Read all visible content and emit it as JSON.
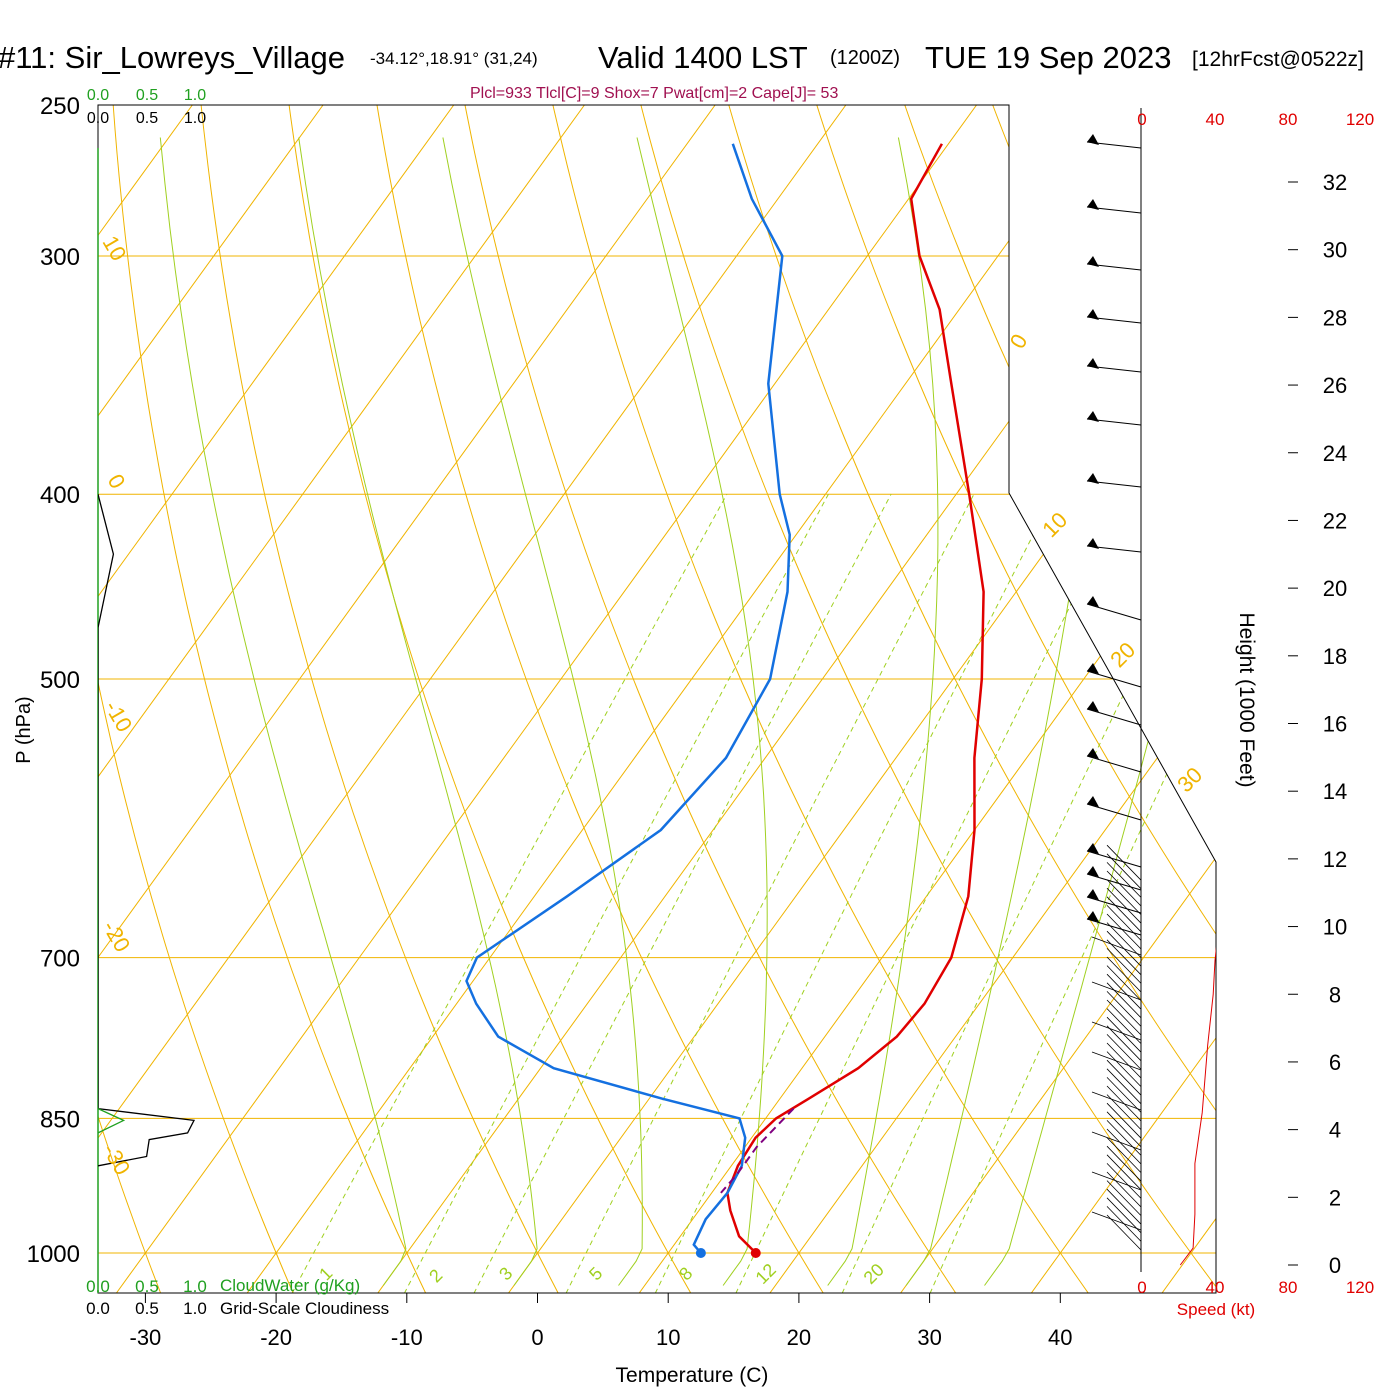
{
  "header": {
    "title_left": "#11: Sir_Lowreys_Village",
    "coords": "-34.12°,18.91° (31,24)",
    "valid": "Valid 1400 LST",
    "zulu": "(1200Z)",
    "date": "TUE 19 Sep 2023",
    "forecast": "[12hrFcst@0522z]",
    "params": "Plcl=933 Tlcl[C]=9 Shox=7 Pwat[cm]=2 Cape[J]= 53"
  },
  "colors": {
    "isotherm": "#f0b400",
    "dry_adiabat": "#a0d020",
    "mixing_ratio": "#a0d020",
    "temperature": "#e00000",
    "dewpoint": "#1470e0",
    "parcel": "#800080",
    "param_text": "#a01050",
    "cloudwater": "#20a020",
    "speed": "#e00000"
  },
  "axes": {
    "xlabel": "Temperature (C)",
    "ylabel": "P (hPa)",
    "height_label": "Height (1000 Feet)",
    "x_ticks": [
      "-30",
      "-20",
      "-10",
      "0",
      "10",
      "20",
      "30",
      "40"
    ],
    "p_ticks": [
      "250",
      "300",
      "400",
      "500",
      "700",
      "850",
      "1000"
    ],
    "height_ticks": [
      "0",
      "2",
      "4",
      "6",
      "8",
      "10",
      "12",
      "14",
      "16",
      "18",
      "20",
      "22",
      "24",
      "26",
      "28",
      "30",
      "32"
    ],
    "speed_ticks_top": [
      "0",
      "40",
      "80",
      "120"
    ],
    "speed_ticks_bottom": [
      "0",
      "40",
      "80",
      "120"
    ],
    "speed_label": "Speed (kt)",
    "cloud_ticks_green": [
      "0.0",
      "0.5",
      "1.0"
    ],
    "cloud_ticks_black": [
      "0.0",
      "0.5",
      "1.0"
    ],
    "cloudwater_label": "CloudWater (g/Kg)",
    "cloudiness_label": "Grid-Scale Cloudiness",
    "isotherm_labels": [
      "10",
      "0",
      "-10",
      "-20",
      "-30",
      "0",
      "10",
      "20",
      "30"
    ],
    "mixing_ratio_labels": [
      "1",
      "2",
      "3",
      "5",
      "8",
      "12",
      "20"
    ]
  },
  "chart_data": {
    "type": "line",
    "subtype": "skew-T log-P sounding",
    "x_range_C": [
      -30,
      40
    ],
    "p_range_hPa": [
      250,
      1000
    ],
    "temperature": [
      {
        "p": 1000,
        "t": 16.7
      },
      {
        "p": 980,
        "t": 14.5
      },
      {
        "p": 950,
        "t": 12.4
      },
      {
        "p": 930,
        "t": 11.2
      },
      {
        "p": 900,
        "t": 10.5
      },
      {
        "p": 870,
        "t": 10.3
      },
      {
        "p": 850,
        "t": 10.8
      },
      {
        "p": 830,
        "t": 12.2
      },
      {
        "p": 800,
        "t": 14.3
      },
      {
        "p": 770,
        "t": 15.5
      },
      {
        "p": 740,
        "t": 15.8
      },
      {
        "p": 700,
        "t": 15.3
      },
      {
        "p": 650,
        "t": 13.2
      },
      {
        "p": 600,
        "t": 10.0
      },
      {
        "p": 550,
        "t": 6.0
      },
      {
        "p": 500,
        "t": 2.2
      },
      {
        "p": 450,
        "t": -2.5
      },
      {
        "p": 400,
        "t": -9.0
      },
      {
        "p": 350,
        "t": -16.5
      },
      {
        "p": 320,
        "t": -21.5
      },
      {
        "p": 300,
        "t": -26.0
      },
      {
        "p": 280,
        "t": -29.8
      },
      {
        "p": 262,
        "t": -30.5
      }
    ],
    "dewpoint": [
      {
        "p": 1000,
        "t": 12.5
      },
      {
        "p": 990,
        "t": 11.5
      },
      {
        "p": 960,
        "t": 11.0
      },
      {
        "p": 930,
        "t": 11.2
      },
      {
        "p": 900,
        "t": 10.8
      },
      {
        "p": 870,
        "t": 9.5
      },
      {
        "p": 850,
        "t": 8.0
      },
      {
        "p": 830,
        "t": 1.0
      },
      {
        "p": 800,
        "t": -9.0
      },
      {
        "p": 770,
        "t": -15.0
      },
      {
        "p": 740,
        "t": -18.5
      },
      {
        "p": 720,
        "t": -20.5
      },
      {
        "p": 700,
        "t": -21.0
      },
      {
        "p": 650,
        "t": -17.5
      },
      {
        "p": 600,
        "t": -14.0
      },
      {
        "p": 550,
        "t": -13.0
      },
      {
        "p": 500,
        "t": -14.0
      },
      {
        "p": 450,
        "t": -17.5
      },
      {
        "p": 420,
        "t": -20.5
      },
      {
        "p": 400,
        "t": -23.5
      },
      {
        "p": 350,
        "t": -30.5
      },
      {
        "p": 300,
        "t": -36.5
      },
      {
        "p": 280,
        "t": -42.0
      },
      {
        "p": 262,
        "t": -46.5
      }
    ],
    "parcel": [
      {
        "p": 840,
        "t": 11.6
      },
      {
        "p": 880,
        "t": 10.9
      },
      {
        "p": 910,
        "t": 10.9
      },
      {
        "p": 930,
        "t": 10.7
      }
    ],
    "surface_temperature_C": 16.7,
    "surface_dewpoint_C": 12.5,
    "wind_speed_profile_kt": [
      {
        "h_kft": 0,
        "s": 21
      },
      {
        "h_kft": 0.5,
        "s": 28
      },
      {
        "h_kft": 1.5,
        "s": 29
      },
      {
        "h_kft": 3,
        "s": 29
      },
      {
        "h_kft": 4.5,
        "s": 33
      },
      {
        "h_kft": 6.5,
        "s": 36
      },
      {
        "h_kft": 8,
        "s": 39
      },
      {
        "h_kft": 9,
        "s": 40
      },
      {
        "h_kft": 10,
        "s": 42
      },
      {
        "h_kft": 12,
        "s": 48
      },
      {
        "h_kft": 14,
        "s": 54
      },
      {
        "h_kft": 16,
        "s": 60
      },
      {
        "h_kft": 20,
        "s": 66
      },
      {
        "h_kft": 24,
        "s": 72
      },
      {
        "h_kft": 28,
        "s": 78
      },
      {
        "h_kft": 30,
        "s": 80
      },
      {
        "h_kft": 31,
        "s": 80
      },
      {
        "h_kft": 32,
        "s": 79
      },
      {
        "h_kft": 33.5,
        "s": 77
      }
    ],
    "grid_scale_cloudiness": [
      {
        "p": 400,
        "v": 0.0
      },
      {
        "p": 430,
        "v": 0.12
      },
      {
        "p": 470,
        "v": 0.0
      },
      {
        "p": 840,
        "v": 0.0
      },
      {
        "p": 852,
        "v": 0.75
      },
      {
        "p": 865,
        "v": 0.7
      },
      {
        "p": 872,
        "v": 0.4
      },
      {
        "p": 890,
        "v": 0.38
      },
      {
        "p": 900,
        "v": 0.0
      }
    ],
    "cloud_water_g_per_kg": [
      {
        "p": 840,
        "v": 0.0
      },
      {
        "p": 852,
        "v": 0.2
      },
      {
        "p": 865,
        "v": 0.0
      }
    ]
  }
}
